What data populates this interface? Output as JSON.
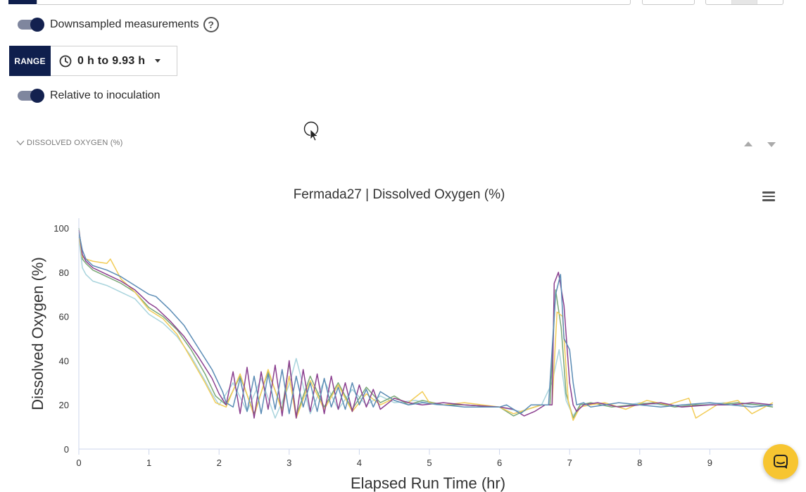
{
  "controls": {
    "downsampled_label": "Downsampled measurements",
    "range_badge": "RANGE",
    "range_value": "0 h to 9.93 h",
    "relative_label": "Relative to inoculation"
  },
  "section": {
    "label": "DISSOLVED OXYGEN (%)"
  },
  "icons": {
    "help": "?"
  },
  "colors": {
    "navy": "#0f1f4d",
    "toggle_knob": "#13214f",
    "chat_button": "#f7c531",
    "series": [
      "#5b8cb5",
      "#8b3f8f",
      "#f2cc57",
      "#7aa876",
      "#a9d4dd"
    ]
  },
  "chart_data": {
    "type": "line",
    "title": "Fermada27 | Dissolved Oxygen (%)",
    "xlabel": "Elapsed Run Time (hr)",
    "ylabel": "Dissolved Oxygen (%)",
    "xlim": [
      0,
      9.93
    ],
    "ylim": [
      0,
      100
    ],
    "xticks": [
      "0",
      "1",
      "2",
      "3",
      "4",
      "5",
      "6",
      "7",
      "8",
      "9"
    ],
    "yticks": [
      "0",
      "20",
      "40",
      "60",
      "80",
      "100"
    ],
    "grid": false,
    "legend": "none",
    "series": [
      {
        "x": [
          0,
          0.05,
          0.1,
          0.2,
          0.4,
          0.6,
          0.8,
          1.0,
          1.1,
          1.3,
          1.5,
          1.7,
          1.9,
          2.05,
          2.1,
          2.2,
          2.3,
          2.4,
          2.5,
          2.6,
          2.7,
          2.8,
          2.9,
          3.0,
          3.1,
          3.2,
          3.3,
          3.4,
          3.5,
          3.6,
          3.7,
          3.8,
          3.9,
          4.0,
          4.1,
          4.2,
          4.3,
          4.5,
          4.7,
          4.9,
          5.2,
          5.5,
          6.0,
          6.1,
          6.3,
          6.45,
          6.6,
          6.7,
          6.8,
          6.87,
          6.92,
          7.0,
          7.05,
          7.1,
          7.2,
          7.3,
          7.5,
          7.7,
          8.0,
          8.3,
          8.6,
          9.0,
          9.3,
          9.6,
          9.9
        ],
        "y": [
          98,
          90,
          86,
          83,
          81,
          78,
          74,
          70,
          69,
          63,
          56,
          46,
          36,
          26,
          21,
          19,
          32,
          17,
          33,
          16,
          34,
          18,
          36,
          16,
          33,
          19,
          30,
          17,
          32,
          19,
          28,
          18,
          30,
          20,
          27,
          19,
          26,
          22,
          20,
          21,
          20,
          19,
          19,
          20,
          16,
          20,
          20,
          20,
          70,
          79,
          50,
          45,
          30,
          20,
          21,
          19,
          20,
          21,
          20,
          19,
          20,
          21,
          20,
          19,
          20
        ]
      },
      {
        "x": [
          0,
          0.05,
          0.1,
          0.2,
          0.4,
          0.6,
          0.8,
          1.0,
          1.1,
          1.3,
          1.5,
          1.7,
          1.9,
          2.0,
          2.1,
          2.2,
          2.3,
          2.4,
          2.5,
          2.6,
          2.7,
          2.8,
          2.9,
          3.0,
          3.1,
          3.2,
          3.3,
          3.4,
          3.5,
          3.6,
          3.7,
          3.8,
          3.9,
          4.0,
          4.1,
          4.2,
          4.3,
          4.5,
          4.7,
          4.9,
          5.2,
          5.5,
          6.0,
          6.2,
          6.35,
          6.5,
          6.65,
          6.75,
          6.78,
          6.84,
          6.92,
          7.0,
          7.05,
          7.1,
          7.2,
          7.4,
          7.7,
          8.0,
          8.3,
          8.6,
          9.0,
          9.3,
          9.6,
          9.9
        ],
        "y": [
          99,
          88,
          85,
          82,
          79,
          76,
          72,
          66,
          64,
          58,
          51,
          42,
          32,
          25,
          20,
          35,
          16,
          37,
          14,
          35,
          18,
          38,
          15,
          40,
          14,
          36,
          17,
          34,
          16,
          33,
          18,
          30,
          17,
          29,
          19,
          27,
          18,
          23,
          21,
          20,
          21,
          20,
          19,
          18,
          15,
          17,
          20,
          20,
          75,
          80,
          65,
          30,
          20,
          17,
          20,
          21,
          19,
          20,
          21,
          19,
          20,
          20,
          21,
          20
        ]
      },
      {
        "x": [
          0,
          0.05,
          0.1,
          0.2,
          0.4,
          0.45,
          0.6,
          0.8,
          1.0,
          1.2,
          1.4,
          1.6,
          1.8,
          1.95,
          2.1,
          2.3,
          2.5,
          2.7,
          2.9,
          3.0,
          3.1,
          3.3,
          3.5,
          3.7,
          3.9,
          4.1,
          4.3,
          4.5,
          4.7,
          4.9,
          5.0,
          5.2,
          5.5,
          6.0,
          6.2,
          6.4,
          6.6,
          6.75,
          6.82,
          6.9,
          6.98,
          7.05,
          7.15,
          7.3,
          7.5,
          7.8,
          8.1,
          8.4,
          8.7,
          8.8,
          9.1,
          9.4,
          9.6,
          9.9
        ],
        "y": [
          97,
          87,
          86,
          85,
          84,
          86,
          77,
          71,
          63,
          59,
          52,
          41,
          30,
          21,
          19,
          34,
          15,
          36,
          17,
          33,
          14,
          31,
          18,
          29,
          17,
          25,
          20,
          23,
          21,
          26,
          21,
          20,
          21,
          19,
          16,
          18,
          20,
          20,
          62,
          60,
          22,
          13,
          19,
          20,
          21,
          18,
          22,
          20,
          23,
          14,
          20,
          22,
          16,
          21
        ]
      },
      {
        "x": [
          0,
          0.05,
          0.1,
          0.2,
          0.4,
          0.6,
          0.8,
          1.0,
          1.2,
          1.4,
          1.6,
          1.8,
          1.95,
          2.1,
          2.3,
          2.5,
          2.7,
          2.9,
          3.0,
          3.1,
          3.3,
          3.5,
          3.7,
          3.9,
          4.1,
          4.3,
          4.5,
          4.7,
          4.9,
          5.2,
          5.5,
          6.0,
          6.2,
          6.4,
          6.6,
          6.72,
          6.8,
          6.88,
          6.95,
          7.05,
          7.15,
          7.3,
          7.6,
          7.9,
          8.2,
          8.5,
          8.8,
          9.1,
          9.4,
          9.7,
          9.9
        ],
        "y": [
          100,
          86,
          84,
          81,
          78,
          75,
          71,
          64,
          60,
          54,
          45,
          34,
          24,
          20,
          33,
          16,
          35,
          18,
          39,
          15,
          33,
          19,
          30,
          18,
          28,
          21,
          24,
          20,
          22,
          20,
          20,
          19,
          15,
          18,
          20,
          20,
          72,
          55,
          25,
          14,
          20,
          21,
          19,
          20,
          21,
          19,
          20,
          20,
          21,
          20,
          19
        ]
      },
      {
        "x": [
          0,
          0.05,
          0.1,
          0.2,
          0.4,
          0.6,
          0.8,
          1.0,
          1.2,
          1.4,
          1.6,
          1.8,
          1.9,
          2.0,
          2.2,
          2.4,
          2.6,
          2.8,
          3.0,
          3.1,
          3.3,
          3.5,
          3.7,
          3.9,
          4.1,
          4.3,
          4.5,
          4.8,
          5.1,
          5.5,
          6.0,
          6.3,
          6.6,
          6.75,
          6.85,
          6.95,
          7.05,
          7.15,
          7.4,
          7.7,
          8.0,
          8.3,
          8.6,
          8.9,
          9.2,
          9.5,
          9.8,
          9.9
        ],
        "y": [
          96,
          82,
          79,
          76,
          74,
          71,
          68,
          61,
          57,
          51,
          42,
          31,
          25,
          20,
          30,
          17,
          32,
          14,
          29,
          41,
          16,
          31,
          18,
          27,
          20,
          24,
          21,
          22,
          20,
          20,
          19,
          17,
          20,
          30,
          45,
          22,
          15,
          20,
          21,
          19,
          21,
          20,
          19,
          20,
          21,
          20,
          20,
          19
        ]
      }
    ]
  }
}
